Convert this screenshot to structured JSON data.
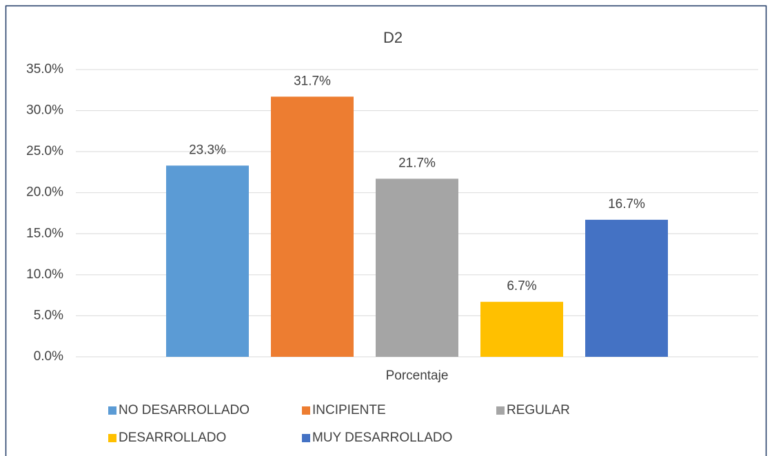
{
  "chart_data": {
    "type": "bar",
    "title": "D2",
    "categories": [
      "Porcentaje"
    ],
    "series": [
      {
        "name": "NO DESARROLLADO",
        "color": "#5b9bd5",
        "values": [
          23.3
        ],
        "value_labels": [
          "23.3%"
        ]
      },
      {
        "name": "INCIPIENTE",
        "color": "#ed7d31",
        "values": [
          31.7
        ],
        "value_labels": [
          "31.7%"
        ]
      },
      {
        "name": "REGULAR",
        "color": "#a5a5a5",
        "values": [
          21.7
        ],
        "value_labels": [
          "21.7%"
        ]
      },
      {
        "name": "DESARROLLADO",
        "color": "#ffc000",
        "values": [
          6.7
        ],
        "value_labels": [
          "6.7%"
        ]
      },
      {
        "name": "MUY DESARROLLADO",
        "color": "#4472c4",
        "values": [
          16.7
        ],
        "value_labels": [
          "16.7%"
        ]
      }
    ],
    "ylim": [
      0,
      35
    ],
    "yticks": [
      {
        "value": 0,
        "label": "0.0%"
      },
      {
        "value": 5,
        "label": "5.0%"
      },
      {
        "value": 10,
        "label": "10.0%"
      },
      {
        "value": 15,
        "label": "15.0%"
      },
      {
        "value": 20,
        "label": "20.0%"
      },
      {
        "value": 25,
        "label": "25.0%"
      },
      {
        "value": 30,
        "label": "30.0%"
      },
      {
        "value": 35,
        "label": "35.0%"
      }
    ],
    "grid": true,
    "legend": "bottom"
  }
}
